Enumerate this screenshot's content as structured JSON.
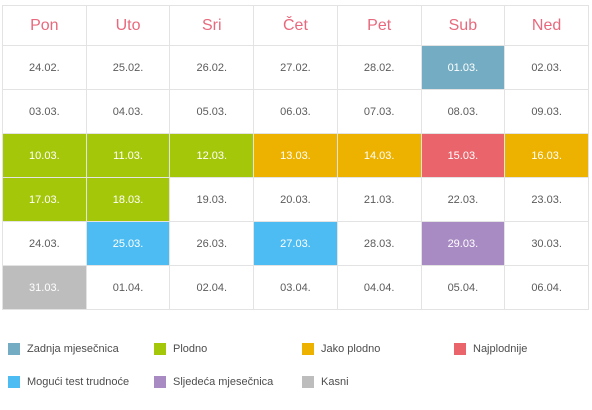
{
  "calendar": {
    "days": [
      "Pon",
      "Uto",
      "Sri",
      "Čet",
      "Pet",
      "Sub",
      "Ned"
    ],
    "weeks": [
      [
        {
          "date": "24.02.",
          "status": ""
        },
        {
          "date": "25.02.",
          "status": ""
        },
        {
          "date": "26.02.",
          "status": ""
        },
        {
          "date": "27.02.",
          "status": ""
        },
        {
          "date": "28.02.",
          "status": ""
        },
        {
          "date": "01.03.",
          "status": "period"
        },
        {
          "date": "02.03.",
          "status": ""
        }
      ],
      [
        {
          "date": "03.03.",
          "status": ""
        },
        {
          "date": "04.03.",
          "status": ""
        },
        {
          "date": "05.03.",
          "status": ""
        },
        {
          "date": "06.03.",
          "status": ""
        },
        {
          "date": "07.03.",
          "status": ""
        },
        {
          "date": "08.03.",
          "status": ""
        },
        {
          "date": "09.03.",
          "status": ""
        }
      ],
      [
        {
          "date": "10.03.",
          "status": "fertile"
        },
        {
          "date": "11.03.",
          "status": "fertile"
        },
        {
          "date": "12.03.",
          "status": "fertile"
        },
        {
          "date": "13.03.",
          "status": "very-fertile"
        },
        {
          "date": "14.03.",
          "status": "very-fertile"
        },
        {
          "date": "15.03.",
          "status": "most-fertile"
        },
        {
          "date": "16.03.",
          "status": "very-fertile"
        }
      ],
      [
        {
          "date": "17.03.",
          "status": "fertile"
        },
        {
          "date": "18.03.",
          "status": "fertile"
        },
        {
          "date": "19.03.",
          "status": ""
        },
        {
          "date": "20.03.",
          "status": ""
        },
        {
          "date": "21.03.",
          "status": ""
        },
        {
          "date": "22.03.",
          "status": ""
        },
        {
          "date": "23.03.",
          "status": ""
        }
      ],
      [
        {
          "date": "24.03.",
          "status": ""
        },
        {
          "date": "25.03.",
          "status": "test"
        },
        {
          "date": "26.03.",
          "status": ""
        },
        {
          "date": "27.03.",
          "status": "test"
        },
        {
          "date": "28.03.",
          "status": ""
        },
        {
          "date": "29.03.",
          "status": "next-period"
        },
        {
          "date": "30.03.",
          "status": ""
        }
      ],
      [
        {
          "date": "31.03.",
          "status": "late"
        },
        {
          "date": "01.04.",
          "status": ""
        },
        {
          "date": "02.04.",
          "status": ""
        },
        {
          "date": "03.04.",
          "status": ""
        },
        {
          "date": "04.04.",
          "status": ""
        },
        {
          "date": "05.04.",
          "status": ""
        },
        {
          "date": "06.04.",
          "status": ""
        }
      ]
    ]
  },
  "legend": [
    {
      "key": "period",
      "label": "Zadnja mjesečnica",
      "color": "#74adc3"
    },
    {
      "key": "fertile",
      "label": "Plodno",
      "color": "#a5c70a"
    },
    {
      "key": "very-fertile",
      "label": "Jako plodno",
      "color": "#edb200"
    },
    {
      "key": "most-fertile",
      "label": "Najplodnije",
      "color": "#e9646b"
    },
    {
      "key": "test",
      "label": "Mogući test trudnoće",
      "color": "#4dbcf2"
    },
    {
      "key": "next-period",
      "label": "Sljedeća mjesečnica",
      "color": "#a98bc4"
    },
    {
      "key": "late",
      "label": "Kasni",
      "color": "#bdbdbd"
    }
  ]
}
